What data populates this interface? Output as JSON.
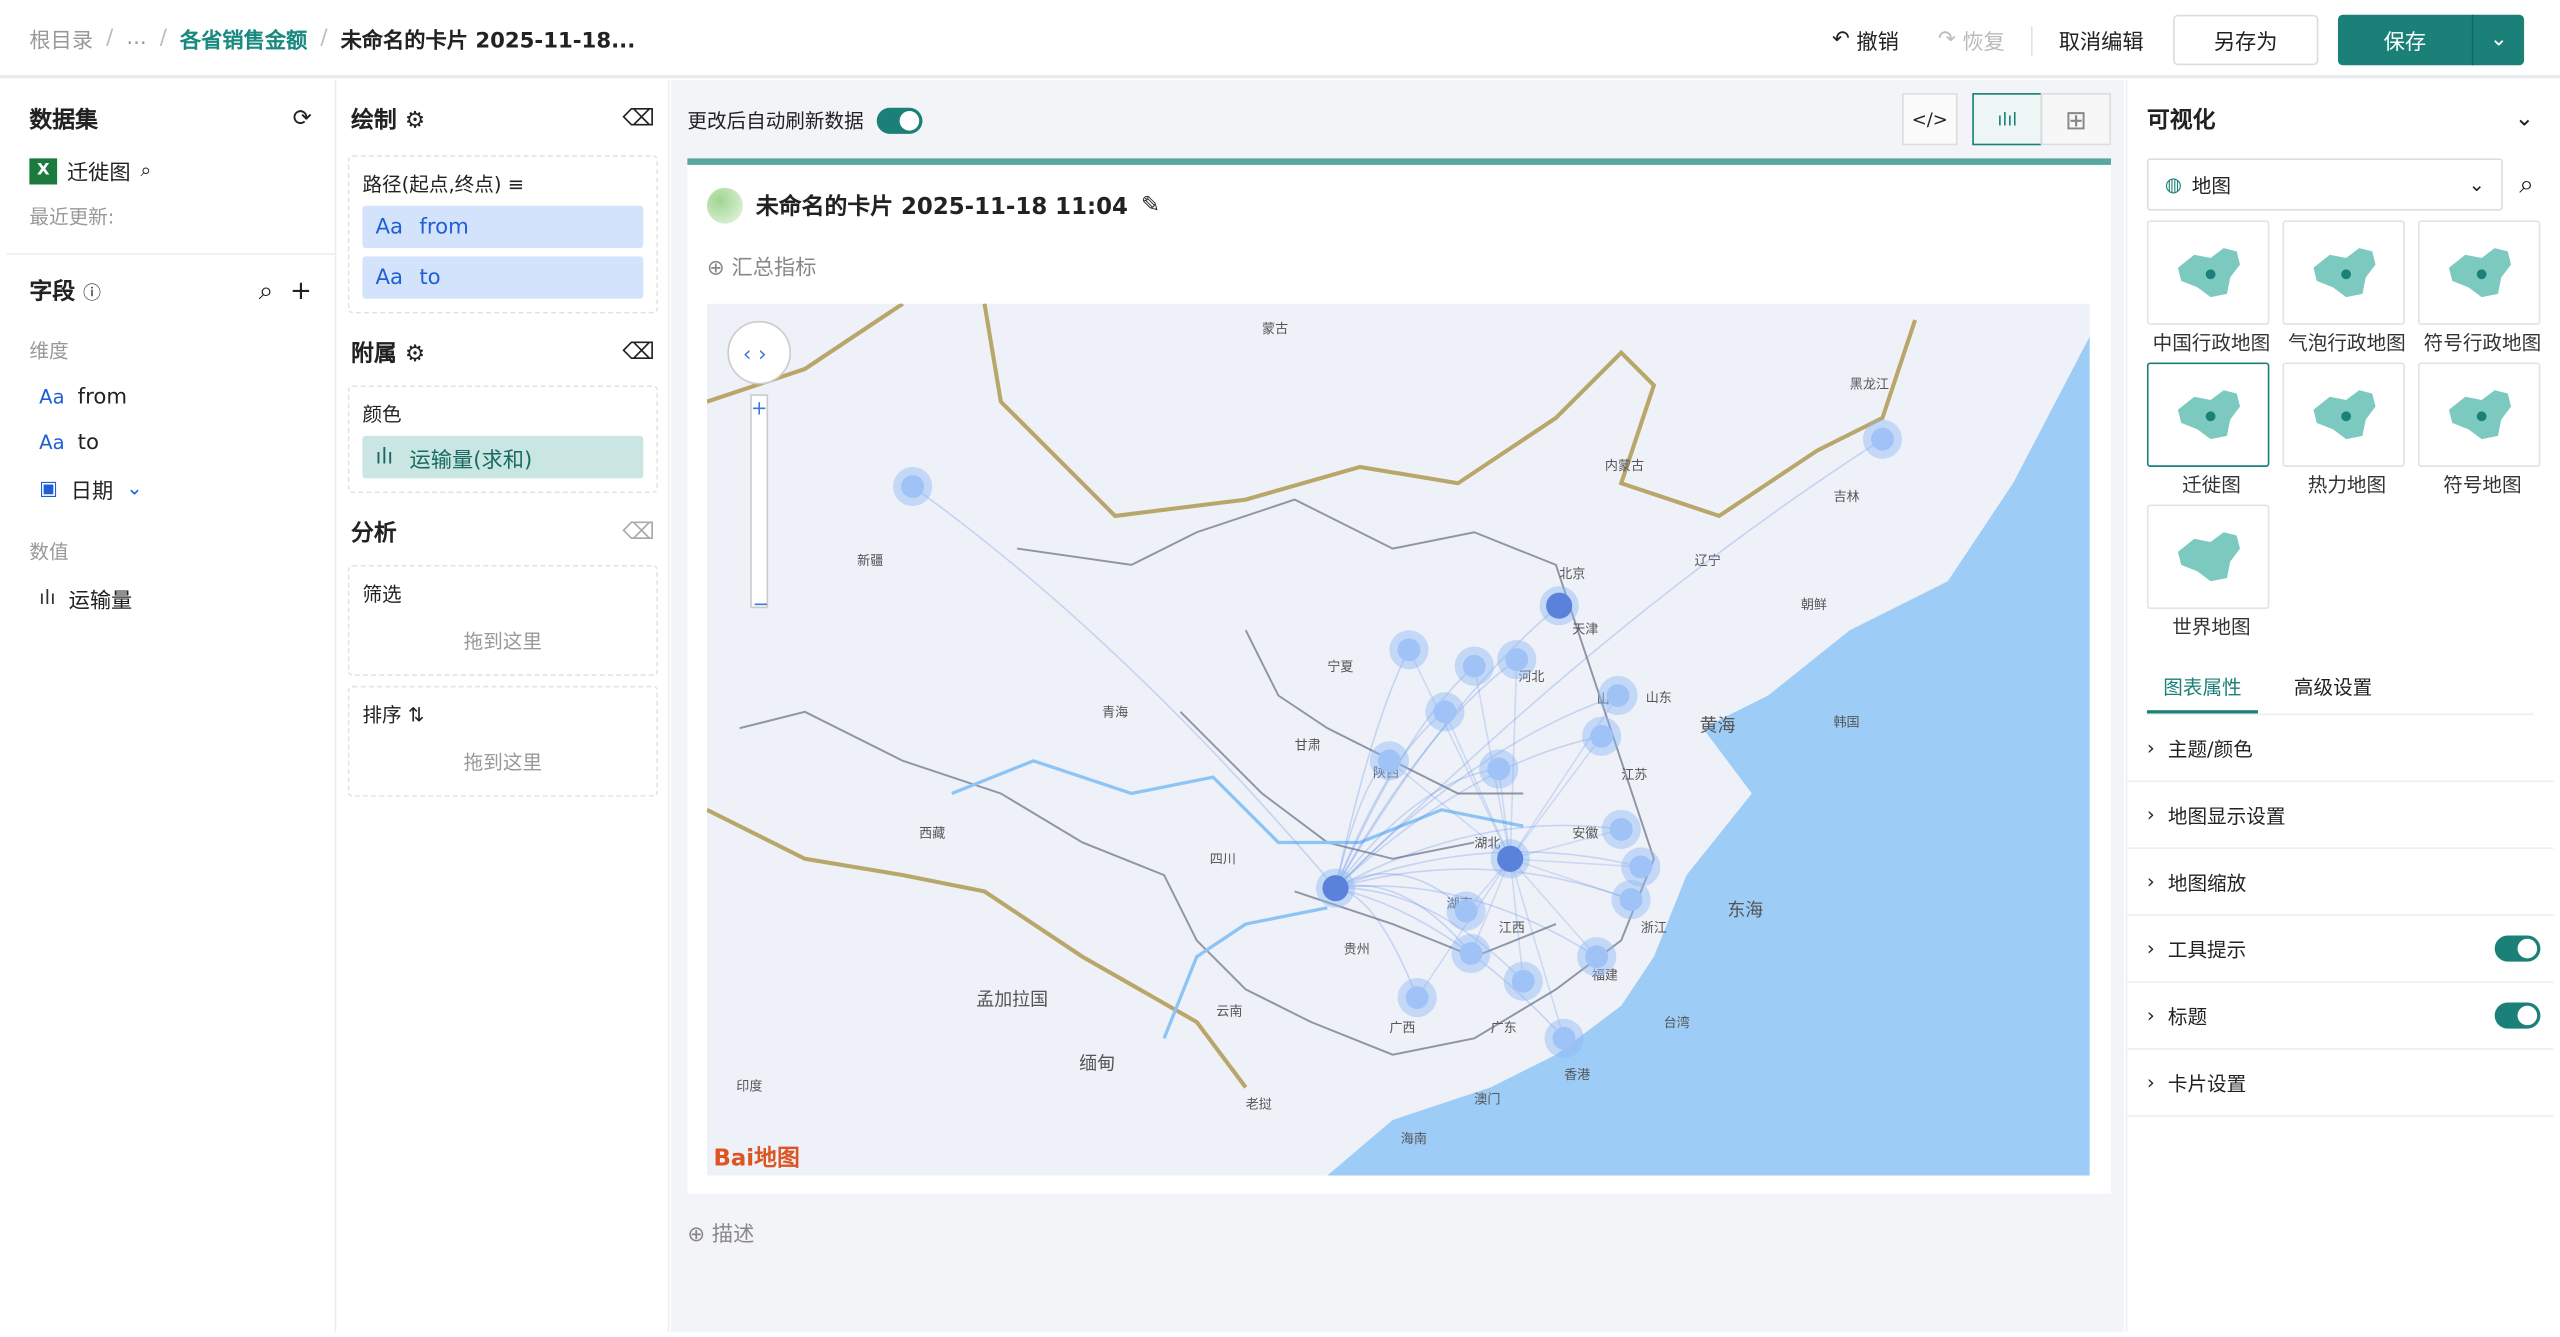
{
  "breadcrumb": [
    "根目录",
    "...",
    "各省销售金额",
    "未命名的卡片 2025-11-18..."
  ],
  "toolbar": {
    "undo": "撤销",
    "redo": "恢复",
    "cancel_edit": "取消编辑",
    "save_as": "另存为",
    "save": "保存"
  },
  "dataset": {
    "title": "数据集",
    "name": "迁徙图",
    "recent_update": "最近更新:"
  },
  "fields": {
    "title": "字段",
    "dimension_label": "维度",
    "dimensions": [
      "from",
      "to",
      "日期"
    ],
    "measure_label": "数值",
    "measures": [
      "运输量"
    ]
  },
  "draw": {
    "title": "绘制",
    "path_label": "路径(起点,终点)",
    "path_fields": [
      "from",
      "to"
    ],
    "attach_title": "附属",
    "color_label": "颜色",
    "color_field": "运输量(求和)",
    "analysis_title": "分析",
    "filter_label": "筛选",
    "sort_label": "排序",
    "drop_hint": "拖到这里"
  },
  "canvas": {
    "auto_refresh": "更改后自动刷新数据",
    "auto_refresh_on": true,
    "card_title": "未命名的卡片 2025-11-18 11:04",
    "summary": "汇总指标",
    "describe": "描述",
    "map_logo": "Bai地图"
  },
  "map_labels": [
    "蒙古",
    "黑龙江",
    "内蒙古",
    "吉林",
    "新疆",
    "辽宁",
    "北京",
    "天津",
    "朝鲜",
    "宁夏",
    "河北",
    "山西",
    "青海",
    "山东",
    "韩国",
    "甘肃",
    "陕西",
    "黄海",
    "江苏",
    "西藏",
    "四川",
    "安徽",
    "湖北",
    "东海",
    "湖南",
    "江西",
    "贵州",
    "浙江",
    "孟加拉国",
    "云南",
    "福建",
    "广西",
    "广东",
    "台湾",
    "缅甸",
    "香港",
    "印度",
    "老挝",
    "澳门",
    "海南"
  ],
  "viz": {
    "title": "可视化",
    "category": "地图",
    "types": [
      "中国行政地图",
      "气泡行政地图",
      "符号行政地图",
      "迁徙图",
      "热力地图",
      "符号地图",
      "世界地图"
    ],
    "selected": "迁徙图",
    "tabs": [
      "图表属性",
      "高级设置"
    ],
    "sections": [
      {
        "label": "主题/颜色"
      },
      {
        "label": "地图显示设置"
      },
      {
        "label": "地图缩放"
      },
      {
        "label": "工具提示",
        "toggle": true
      },
      {
        "label": "标题",
        "toggle": true
      },
      {
        "label": "卡片设置"
      }
    ]
  },
  "colors": {
    "accent": "#1a8078",
    "sea": "#9dcdf7",
    "land": "#eef1f8",
    "route": "#4a7fe0"
  }
}
